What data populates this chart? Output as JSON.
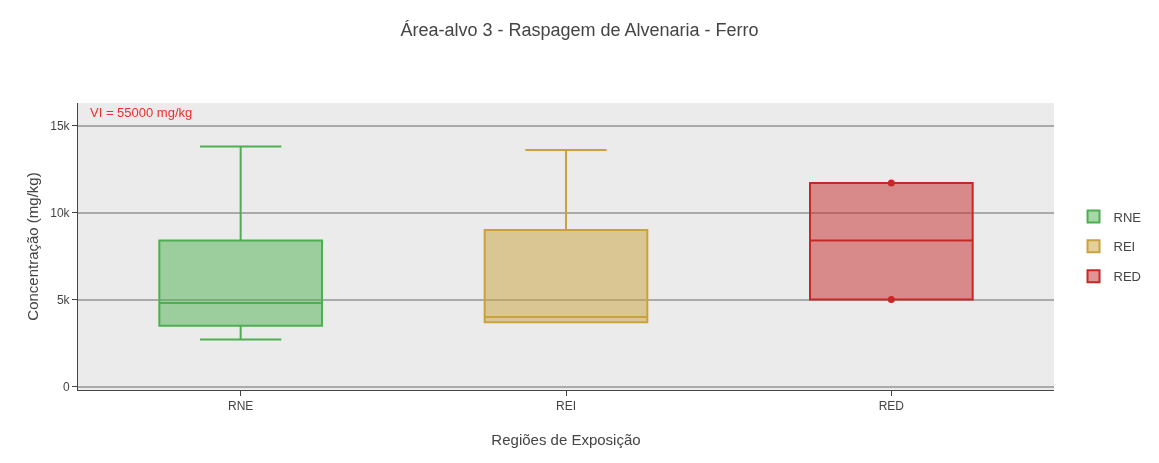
{
  "chart_data": {
    "type": "box",
    "title": "Área-alvo 3 - Raspagem de Alvenaria - Ferro",
    "xlabel": "Regiões de Exposição",
    "ylabel": "Concentração (mg/kg)",
    "categories": [
      "RNE",
      "REI",
      "RED"
    ],
    "series": [
      {
        "name": "RNE",
        "color": "#4caf50",
        "boxes": [
          {
            "low": 2700,
            "q1": 3500,
            "median": 4800,
            "q3": 8400,
            "high": 13800
          },
          null,
          null
        ]
      },
      {
        "name": "REI",
        "color": "#c9a23a",
        "boxes": [
          null,
          {
            "low": 3700,
            "q1": 3700,
            "median": 4000,
            "q3": 9000,
            "high": 13600
          },
          null
        ]
      },
      {
        "name": "RED",
        "color": "#c62828",
        "boxes": [
          null,
          null,
          {
            "low": 5000,
            "q1": 5000,
            "median": 8400,
            "q3": 11700,
            "high": 11700,
            "outliers": [
              11700,
              5000
            ]
          }
        ]
      }
    ],
    "ylim": [
      -200,
      16300
    ],
    "yticks": [
      {
        "value": 0,
        "label": "0"
      },
      {
        "value": 5000,
        "label": "5k"
      },
      {
        "value": 10000,
        "label": "10k"
      },
      {
        "value": 15000,
        "label": "15k"
      }
    ],
    "grid": "y",
    "legend": "right",
    "annotations": [
      "VI = 55000 mg/kg"
    ]
  }
}
